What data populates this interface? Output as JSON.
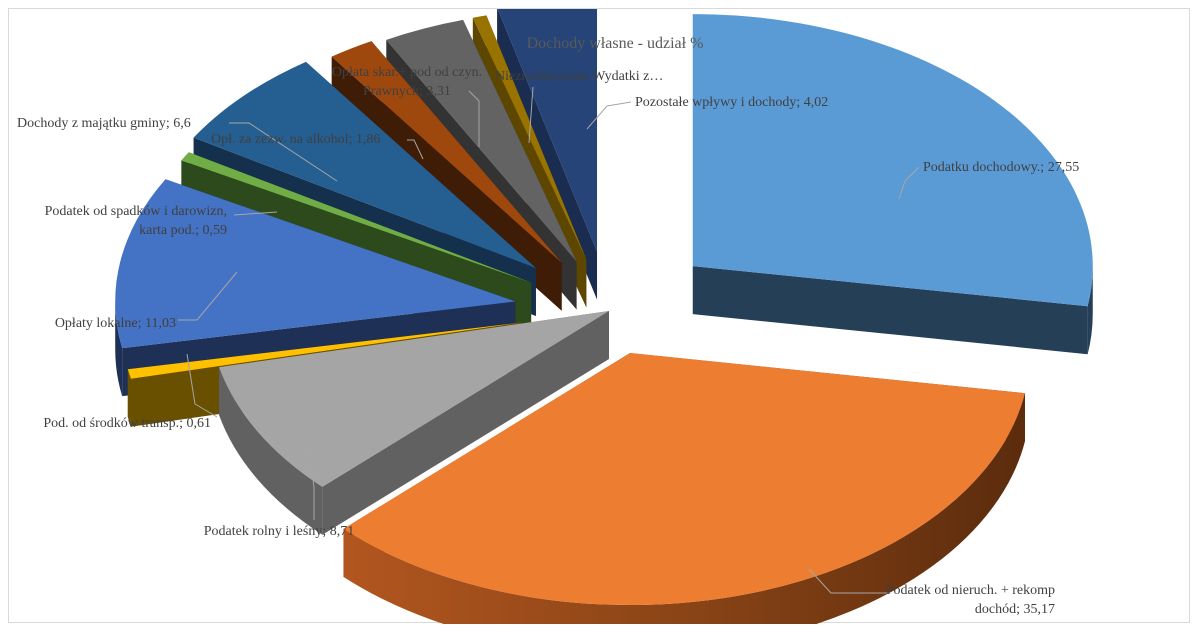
{
  "chart_data": {
    "type": "pie",
    "title": "Dochody własne - udział %",
    "slices": [
      {
        "name": "Podatku dochodowy.",
        "value": 27.55,
        "value_label": "27,55",
        "color": "#5b9bd5"
      },
      {
        "name": "Podatek od nieruch. + rekomp dochód",
        "value": 35.17,
        "value_label": "35,17",
        "color": "#ed7d31"
      },
      {
        "name": "Podatek rolny i leśny",
        "value": 8.71,
        "value_label": "8,71",
        "color": "#a5a5a5"
      },
      {
        "name": "Pod. od środków transp.",
        "value": 0.61,
        "value_label": "0,61",
        "color": "#ffc000"
      },
      {
        "name": "Opłaty lokalne",
        "value": 11.03,
        "value_label": "11,03",
        "color": "#4472c4"
      },
      {
        "name": "Podatek od spadków i darowizn, karta pod.",
        "value": 0.59,
        "value_label": "0,59",
        "color": "#70ad47"
      },
      {
        "name": "Dochody z majątku gminy",
        "value": 6.6,
        "value_label": "6,6",
        "color": "#255e91"
      },
      {
        "name": "Opł. za zezw. na alkohol",
        "value": 1.86,
        "value_label": "1,86",
        "color": "#9e480e"
      },
      {
        "name": "Opłata skar.+ pod od czyn. Prawnych",
        "value": 3.31,
        "value_label": "3,31",
        "color": "#636363"
      },
      {
        "name": "Niezrealizowane Wydatki z…",
        "value": 0.56,
        "value_label": "",
        "color": "#997300"
      },
      {
        "name": "Pozostałe wpływy i dochody",
        "value": 4.02,
        "value_label": "4,02",
        "color": "#264478"
      }
    ],
    "labels": [
      {
        "lines": [
          "Podatku dochodowy.; 27,55"
        ]
      },
      {
        "lines": [
          "Podatek od nieruch. + rekomp",
          "dochód; 35,17"
        ]
      },
      {
        "lines": [
          "Podatek rolny i leśny; 8,71"
        ]
      },
      {
        "lines": [
          "Pod. od  środków transp.; 0,61"
        ]
      },
      {
        "lines": [
          "Opłaty lokalne; 11,03"
        ]
      },
      {
        "lines": [
          "Podatek od spadków i darowizn,",
          "karta pod.; 0,59"
        ]
      },
      {
        "lines": [
          "Dochody  z majątku gminy; 6,6"
        ]
      },
      {
        "lines": [
          "Opł. za zezw. na alkohol; 1,86"
        ]
      },
      {
        "lines": [
          "Opłata skar.+ pod od czyn.",
          "Prawnych; 3,31"
        ]
      },
      {
        "lines": [
          "Niezrealizowane Wydatki z…"
        ]
      },
      {
        "lines": [
          "Pozostałe wpływy i dochody; 4,02"
        ]
      }
    ],
    "style": "3d-exploded-pie",
    "legend": "none",
    "label_lines": "leader lines"
  }
}
